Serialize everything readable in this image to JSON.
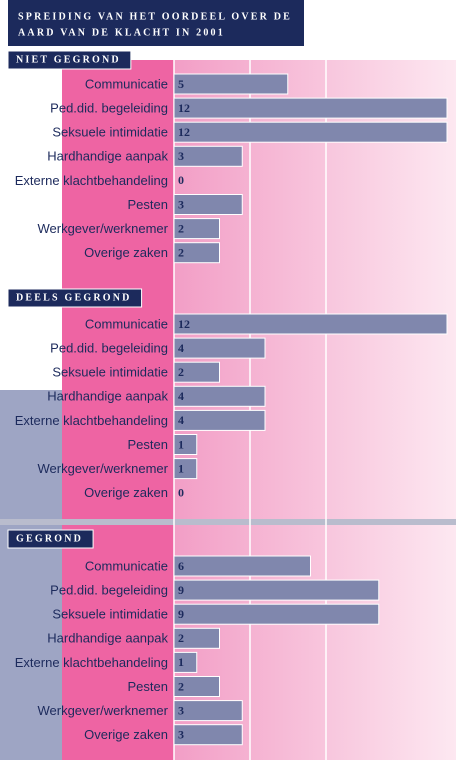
{
  "title": [
    "SPREIDING VAN HET OORDEEL OVER DE",
    "AARD VAN DE KLACHT IN 2001"
  ],
  "chart_data": [
    {
      "type": "bar",
      "title": "NIET GEGROND",
      "categories": [
        "Communicatie",
        "Ped.did. begeleiding",
        "Seksuele intimidatie",
        "Hardhandige aanpak",
        "Externe klachtbehandeling",
        "Pesten",
        "Werkgever/werknemer",
        "Overige zaken"
      ],
      "values": [
        5,
        12,
        12,
        3,
        0,
        3,
        2,
        2
      ],
      "color": "#8087ad",
      "xlim": [
        0,
        12
      ]
    },
    {
      "type": "bar",
      "title": "DEELS GEGROND",
      "categories": [
        "Communicatie",
        "Ped.did. begeleiding",
        "Seksuele intimidatie",
        "Hardhandige aanpak",
        "Externe klachtbehandeling",
        "Pesten",
        "Werkgever/werknemer",
        "Overige zaken"
      ],
      "values": [
        12,
        4,
        2,
        4,
        4,
        1,
        1,
        0
      ],
      "color": "#8087ad",
      "xlim": [
        0,
        12
      ]
    },
    {
      "type": "bar",
      "title": "GEGROND",
      "categories": [
        "Communicatie",
        "Ped.did. begeleiding",
        "Seksuele intimidatie",
        "Hardhandige aanpak",
        "Externe klachtbehandeling",
        "Pesten",
        "Werkgever/werknemer",
        "Overige zaken"
      ],
      "values": [
        6,
        9,
        9,
        2,
        1,
        2,
        3,
        3
      ],
      "color": "#8087ad",
      "xlim": [
        0,
        12
      ]
    }
  ]
}
